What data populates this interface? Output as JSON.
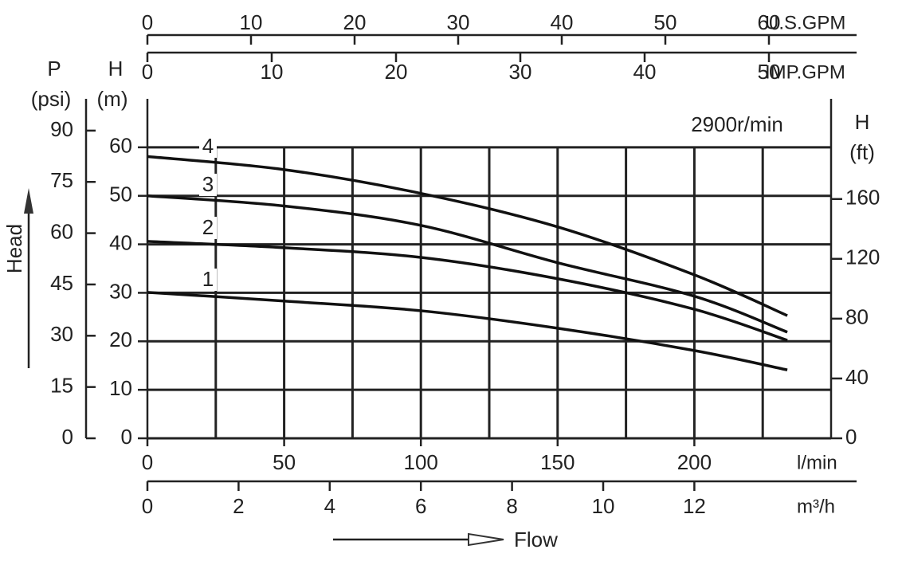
{
  "chart_data": {
    "type": "line",
    "speed_label": "2900r/min",
    "y_title": "Head",
    "x_title": "Flow",
    "x": [
      0,
      50,
      100,
      150,
      200,
      234
    ],
    "series": [
      {
        "name": "1",
        "color": "#111111",
        "values": [
          30.1,
          28.3,
          26.3,
          22.7,
          18.1,
          14.1
        ]
      },
      {
        "name": "2",
        "color": "#111111",
        "values": [
          40.6,
          39.3,
          37.3,
          32.9,
          26.6,
          20.2
        ]
      },
      {
        "name": "3",
        "color": "#111111",
        "values": [
          50,
          47.9,
          43.9,
          36.2,
          29.3,
          21.9
        ]
      },
      {
        "name": "4",
        "color": "#111111",
        "values": [
          58.1,
          55.4,
          50.5,
          43.6,
          33.7,
          25.3
        ]
      }
    ],
    "xlabel": "l/min",
    "xlim": [
      0,
      250
    ],
    "xticks": [
      0,
      50,
      100,
      150,
      200
    ],
    "xgrid": [
      25,
      50,
      75,
      100,
      125,
      150,
      175,
      200,
      225
    ],
    "ylabel": "H",
    "yunit": "(m)",
    "ylim": [
      0,
      70
    ],
    "yticks": [
      0,
      10,
      20,
      30,
      40,
      50,
      60
    ],
    "grid": true,
    "p_axis": {
      "label": "P",
      "unit": "(psi)",
      "lim": [
        0,
        99.3
      ],
      "ticks": [
        0,
        15,
        30,
        45,
        60,
        75,
        90
      ]
    },
    "ft_axis": {
      "label": "H",
      "unit": "(ft)",
      "lim": [
        0,
        227
      ],
      "ticks": [
        0,
        40,
        80,
        120,
        160
      ]
    },
    "m3h_axis": {
      "label": "m³/h",
      "lim": [
        0,
        15
      ],
      "ticks": [
        0,
        2,
        4,
        6,
        8,
        10,
        12
      ]
    },
    "usgpm_axis": {
      "label": "U.S.GPM",
      "lim": [
        0,
        66
      ],
      "ticks": [
        0,
        10,
        20,
        30,
        40,
        50,
        60
      ]
    },
    "impgpm_axis": {
      "label": "IMP.GPM",
      "lim": [
        0,
        55
      ],
      "ticks": [
        0,
        10,
        20,
        30,
        40,
        50
      ]
    }
  }
}
